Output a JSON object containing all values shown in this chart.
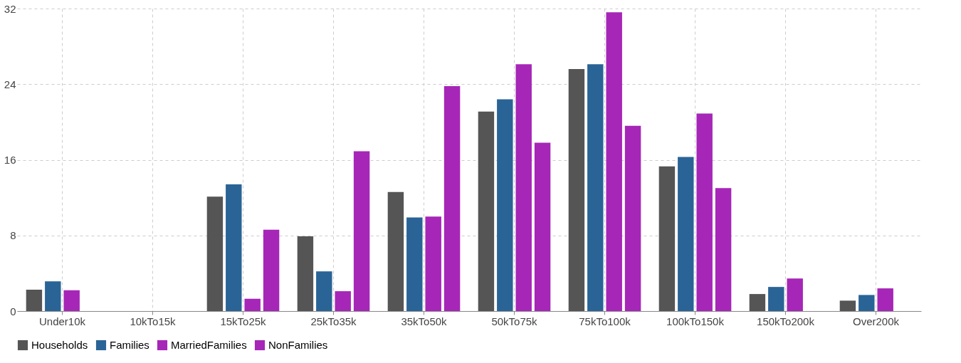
{
  "chart_data": {
    "type": "bar",
    "categories": [
      "Under10k",
      "10kTo15k",
      "15kTo25k",
      "25kTo35k",
      "35kTo50k",
      "50kTo75k",
      "75kTo100k",
      "100kTo150k",
      "150kTo200k",
      "Over200k"
    ],
    "series": [
      {
        "name": "Households",
        "color": "#555555",
        "values": [
          2.25,
          0,
          12.1,
          7.9,
          12.6,
          21.1,
          25.6,
          15.3,
          1.8,
          1.1
        ]
      },
      {
        "name": "Families",
        "color": "#2a6496",
        "values": [
          3.15,
          0,
          13.4,
          4.2,
          9.9,
          22.4,
          26.1,
          16.3,
          2.55,
          1.7
        ]
      },
      {
        "name": "MarriedFamilies",
        "color": "#a626b7",
        "values": [
          2.2,
          0,
          1.3,
          2.1,
          10.0,
          26.1,
          31.6,
          20.9,
          3.45,
          2.4
        ]
      },
      {
        "name": "NonFamilies",
        "color": "#a626b7",
        "values": [
          0,
          0,
          8.6,
          16.9,
          23.8,
          17.8,
          19.6,
          13.0,
          0,
          0
        ]
      }
    ],
    "ylim": [
      0,
      32
    ],
    "yticks": [
      0,
      8,
      16,
      24,
      32
    ],
    "grid": true,
    "legend": "bottom"
  }
}
